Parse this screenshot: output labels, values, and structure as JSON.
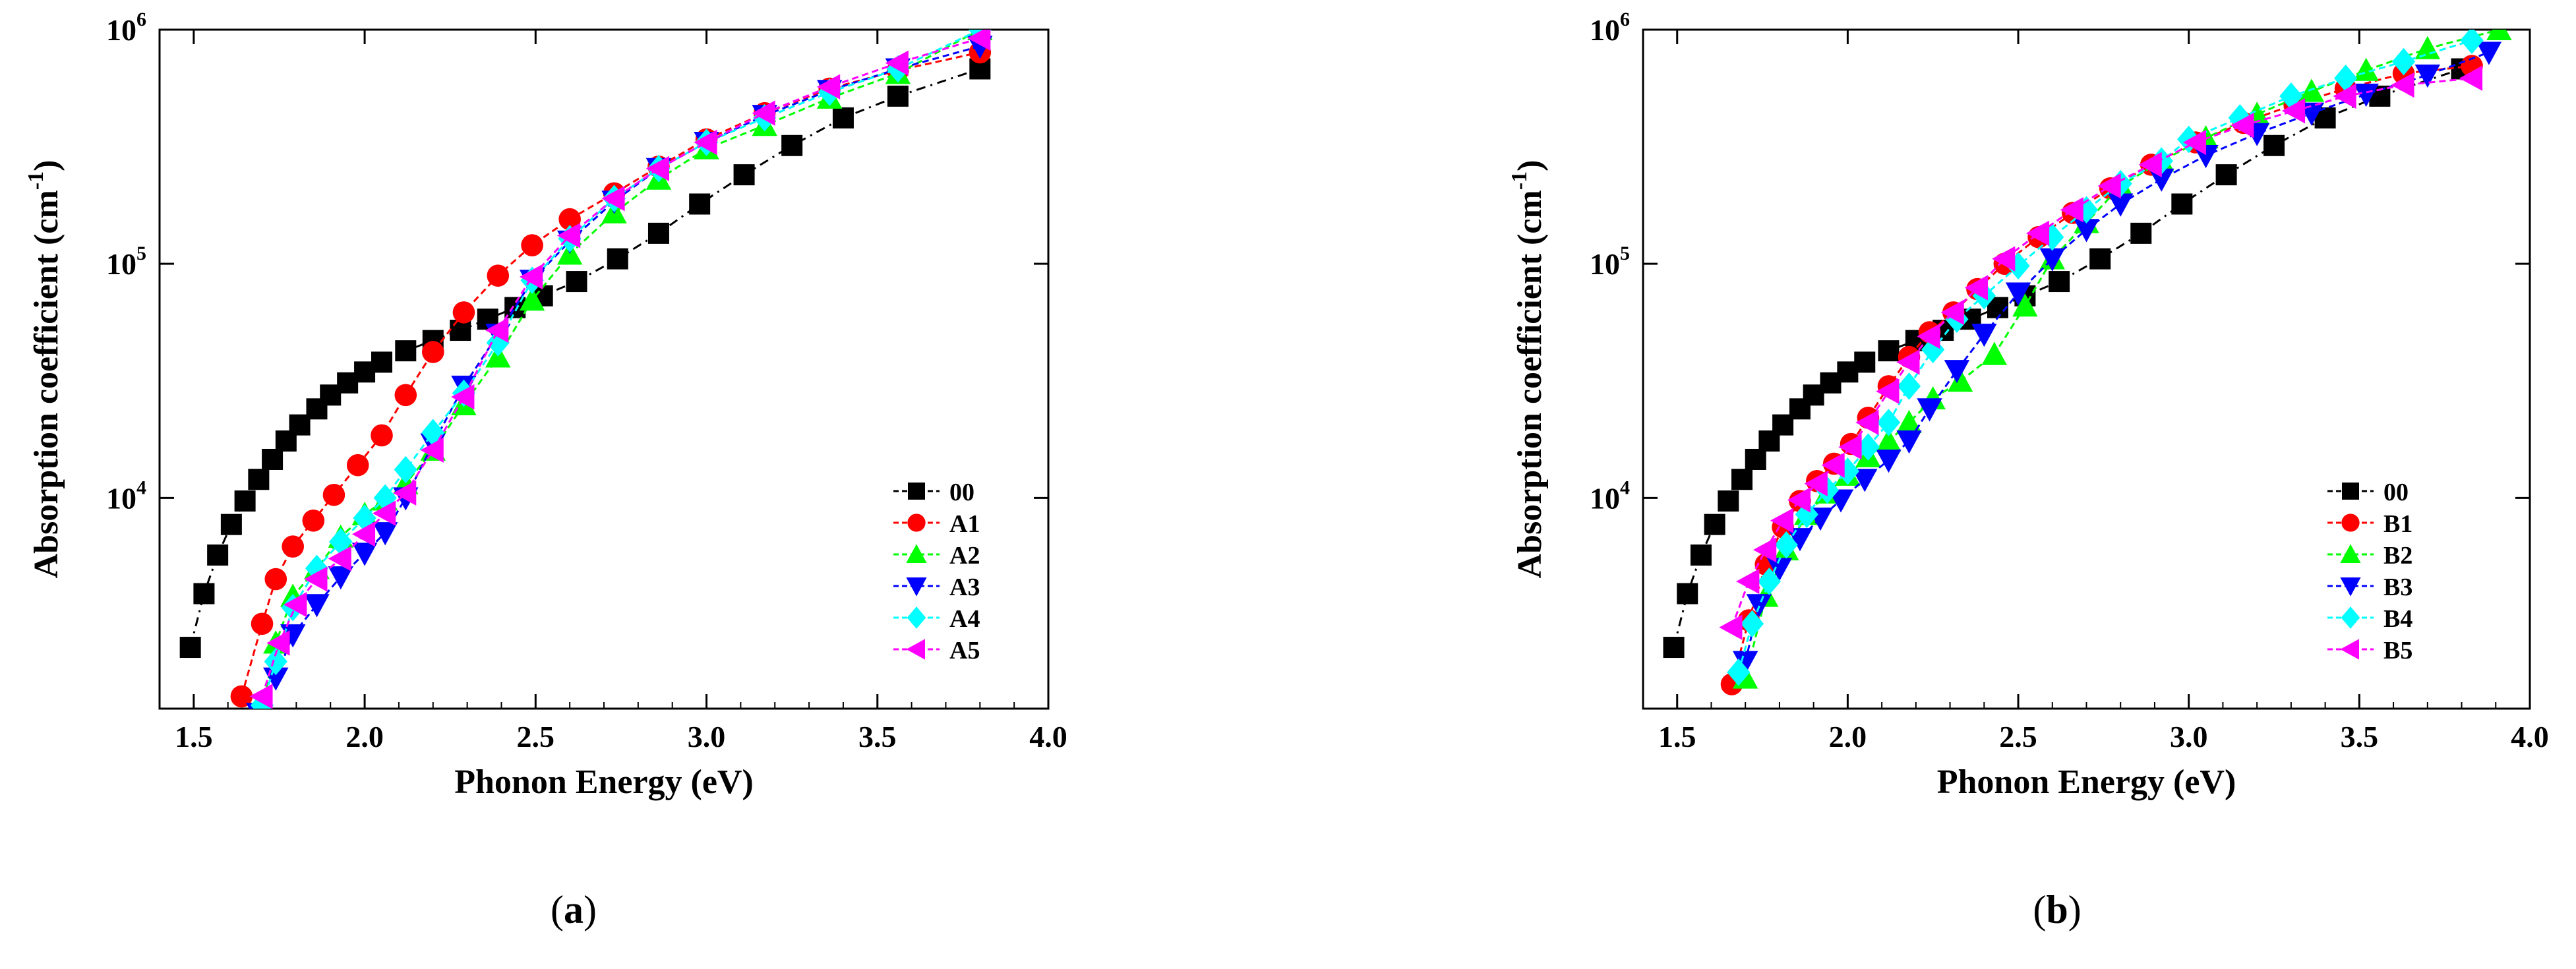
{
  "chart_data": [
    {
      "type": "scatter",
      "panel_label": "(a)",
      "title": "",
      "xlabel": "Phonon Energy (eV)",
      "ylabel": "Absorption coefficient (cm-1)",
      "ylabel_parts": [
        "Absorption coefficient (cm",
        "-1",
        ")"
      ],
      "xlim": [
        1.4,
        4.0
      ],
      "ylim_log10": [
        3.1,
        6.0
      ],
      "x_ticks": [
        1.5,
        2.0,
        2.5,
        3.0,
        3.5,
        4.0
      ],
      "x_tick_labels": [
        "1.5",
        "2.0",
        "2.5",
        "3.0",
        "3.5",
        "4.0"
      ],
      "y_ticks_log10": [
        4,
        5,
        6
      ],
      "y_tick_labels": [
        [
          "10",
          "4"
        ],
        [
          "10",
          "5"
        ],
        [
          "10",
          "6"
        ]
      ],
      "legend_position": "bottom-right",
      "series": [
        {
          "name": "00",
          "color": "#000000",
          "marker": "square",
          "x": [
            1.49,
            1.53,
            1.57,
            1.61,
            1.65,
            1.69,
            1.73,
            1.77,
            1.81,
            1.86,
            1.9,
            1.95,
            2.0,
            2.05,
            2.12,
            2.2,
            2.28,
            2.36,
            2.44,
            2.52,
            2.62,
            2.74,
            2.86,
            2.98,
            3.11,
            3.25,
            3.4,
            3.56,
            3.8
          ],
          "y": [
            2300,
            3900,
            5700,
            7700,
            9700,
            12000,
            14600,
            17500,
            20500,
            24000,
            27500,
            31000,
            34500,
            38000,
            42500,
            47000,
            52000,
            58000,
            65000,
            73000,
            84000,
            105000,
            135000,
            180000,
            240000,
            320000,
            420000,
            520000,
            680000
          ]
        },
        {
          "name": "A1",
          "color": "#ff0000",
          "marker": "circle",
          "x": [
            1.64,
            1.7,
            1.74,
            1.79,
            1.85,
            1.91,
            1.98,
            2.05,
            2.12,
            2.2,
            2.29,
            2.39,
            2.49,
            2.6,
            2.73,
            2.86,
            3.0,
            3.17,
            3.36,
            3.56,
            3.8
          ],
          "y": [
            1420,
            2900,
            4500,
            6200,
            8000,
            10300,
            13800,
            18500,
            27500,
            42000,
            62000,
            89000,
            120000,
            155000,
            200000,
            260000,
            340000,
            440000,
            560000,
            670000,
            800000
          ]
        },
        {
          "name": "A2",
          "color": "#00ff00",
          "marker": "triangle-up",
          "x": [
            1.7,
            1.74,
            1.79,
            1.86,
            1.93,
            2.0,
            2.06,
            2.12,
            2.2,
            2.29,
            2.39,
            2.49,
            2.6,
            2.73,
            2.86,
            3.0,
            3.17,
            3.36,
            3.56,
            3.8
          ],
          "y": [
            1250,
            2400,
            3800,
            5000,
            6800,
            8500,
            9800,
            11500,
            16000,
            25000,
            40000,
            70000,
            110000,
            165000,
            230000,
            310000,
            390000,
            510000,
            650000,
            1000000
          ]
        },
        {
          "name": "A3",
          "color": "#0000ff",
          "marker": "triangle-down",
          "x": [
            1.69,
            1.74,
            1.79,
            1.86,
            1.93,
            2.0,
            2.06,
            2.12,
            2.2,
            2.29,
            2.39,
            2.49,
            2.6,
            2.73,
            2.86,
            3.0,
            3.17,
            3.36,
            3.56,
            3.8
          ],
          "y": [
            1200,
            1700,
            2600,
            3500,
            4600,
            5800,
            7100,
            10000,
            17000,
            30000,
            50000,
            85000,
            125000,
            185000,
            255000,
            330000,
            430000,
            550000,
            680000,
            850000
          ]
        },
        {
          "name": "A4",
          "color": "#00ffff",
          "marker": "diamond",
          "x": [
            1.7,
            1.74,
            1.79,
            1.86,
            1.93,
            2.0,
            2.06,
            2.12,
            2.2,
            2.29,
            2.39,
            2.49,
            2.6,
            2.73,
            2.86,
            3.0,
            3.17,
            3.36,
            3.56,
            3.8
          ],
          "y": [
            1300,
            2000,
            3400,
            5000,
            6500,
            8200,
            10000,
            13200,
            19000,
            28000,
            46000,
            85000,
            128000,
            190000,
            255000,
            330000,
            420000,
            540000,
            680000,
            1000000
          ]
        },
        {
          "name": "A5",
          "color": "#ff00ff",
          "marker": "triangle-left",
          "x": [
            1.7,
            1.75,
            1.8,
            1.86,
            1.93,
            2.0,
            2.06,
            2.12,
            2.2,
            2.29,
            2.39,
            2.49,
            2.6,
            2.73,
            2.86,
            3.0,
            3.17,
            3.36,
            3.56,
            3.8
          ],
          "y": [
            1420,
            2400,
            3500,
            4500,
            5500,
            7000,
            8600,
            10500,
            16000,
            27000,
            52000,
            88000,
            132000,
            190000,
            255000,
            330000,
            440000,
            570000,
            720000,
            920000
          ]
        }
      ]
    },
    {
      "type": "scatter",
      "panel_label": "(b)",
      "title": "",
      "xlabel": "Phonon Energy (eV)",
      "ylabel": "Absorption coefficient (cm-1)",
      "ylabel_parts": [
        "Absorption coefficient (cm",
        "-1",
        ")"
      ],
      "xlim": [
        1.4,
        4.0
      ],
      "ylim_log10": [
        3.1,
        6.0
      ],
      "x_ticks": [
        1.5,
        2.0,
        2.5,
        3.0,
        3.5,
        4.0
      ],
      "x_tick_labels": [
        "1.5",
        "2.0",
        "2.5",
        "3.0",
        "3.5",
        "4.0"
      ],
      "y_ticks_log10": [
        4,
        5,
        6
      ],
      "y_tick_labels": [
        [
          "10",
          "4"
        ],
        [
          "10",
          "5"
        ],
        [
          "10",
          "6"
        ]
      ],
      "legend_position": "bottom-right",
      "series": [
        {
          "name": "00",
          "color": "#000000",
          "marker": "square",
          "x": [
            1.49,
            1.53,
            1.57,
            1.61,
            1.65,
            1.69,
            1.73,
            1.77,
            1.81,
            1.86,
            1.9,
            1.95,
            2.0,
            2.05,
            2.12,
            2.2,
            2.28,
            2.36,
            2.44,
            2.52,
            2.62,
            2.74,
            2.86,
            2.98,
            3.11,
            3.25,
            3.4,
            3.56,
            3.8
          ],
          "y": [
            2300,
            3900,
            5700,
            7700,
            9700,
            12000,
            14600,
            17500,
            20500,
            24000,
            27500,
            31000,
            34500,
            38000,
            42500,
            47000,
            52000,
            58000,
            65000,
            73000,
            84000,
            105000,
            135000,
            180000,
            240000,
            320000,
            420000,
            520000,
            680000
          ]
        },
        {
          "name": "B1",
          "color": "#ff0000",
          "marker": "circle",
          "x": [
            1.66,
            1.71,
            1.76,
            1.81,
            1.86,
            1.91,
            1.96,
            2.01,
            2.06,
            2.12,
            2.18,
            2.24,
            2.31,
            2.38,
            2.46,
            2.56,
            2.66,
            2.77,
            2.89,
            3.02,
            3.16,
            3.31,
            3.46,
            3.63,
            3.83
          ],
          "y": [
            1600,
            3000,
            5200,
            7500,
            9700,
            11800,
            14000,
            17000,
            22000,
            30000,
            40000,
            51000,
            62000,
            78000,
            100000,
            130000,
            165000,
            210000,
            265000,
            330000,
            400000,
            480000,
            560000,
            650000,
            700000
          ]
        },
        {
          "name": "B2",
          "color": "#00ff00",
          "marker": "triangle-up",
          "x": [
            1.7,
            1.76,
            1.82,
            1.88,
            1.94,
            2.0,
            2.06,
            2.12,
            2.18,
            2.25,
            2.33,
            2.43,
            2.52,
            2.6,
            2.7,
            2.8,
            2.92,
            3.05,
            3.2,
            3.36,
            3.52,
            3.7,
            3.91
          ],
          "y": [
            1700,
            3800,
            6000,
            8500,
            10500,
            12500,
            15000,
            17500,
            21000,
            26500,
            31500,
            41000,
            66000,
            105000,
            150000,
            215000,
            275000,
            345000,
            435000,
            545000,
            670000,
            830000,
            1000000
          ]
        },
        {
          "name": "B3",
          "color": "#0000ff",
          "marker": "triangle-down",
          "x": [
            1.7,
            1.74,
            1.8,
            1.86,
            1.92,
            1.98,
            2.05,
            2.12,
            2.18,
            2.24,
            2.32,
            2.4,
            2.5,
            2.6,
            2.7,
            2.8,
            2.92,
            3.05,
            3.2,
            3.36,
            3.52,
            3.7,
            3.88
          ],
          "y": [
            2000,
            3500,
            5000,
            6700,
            8200,
            9800,
            12000,
            14500,
            17500,
            24000,
            35000,
            50000,
            75000,
            105000,
            140000,
            180000,
            230000,
            290000,
            360000,
            440000,
            530000,
            640000,
            800000
          ]
        },
        {
          "name": "B4",
          "color": "#00ffff",
          "marker": "diamond",
          "x": [
            1.68,
            1.72,
            1.77,
            1.82,
            1.88,
            1.94,
            2.0,
            2.06,
            2.12,
            2.18,
            2.25,
            2.32,
            2.4,
            2.5,
            2.6,
            2.7,
            2.8,
            2.92,
            3.0,
            3.15,
            3.3,
            3.46,
            3.63,
            3.83
          ],
          "y": [
            1800,
            2900,
            4400,
            6300,
            8500,
            10800,
            13000,
            16500,
            21000,
            30000,
            43000,
            58000,
            73000,
            98000,
            130000,
            170000,
            220000,
            275000,
            340000,
            420000,
            520000,
            620000,
            730000,
            900000
          ]
        },
        {
          "name": "B5",
          "color": "#ff00ff",
          "marker": "triangle-left",
          "x": [
            1.66,
            1.71,
            1.76,
            1.81,
            1.86,
            1.91,
            1.96,
            2.01,
            2.06,
            2.12,
            2.18,
            2.24,
            2.31,
            2.38,
            2.46,
            2.56,
            2.66,
            2.77,
            2.89,
            3.02,
            3.16,
            3.31,
            3.46,
            3.63,
            3.83
          ],
          "y": [
            2800,
            4400,
            6000,
            8000,
            9800,
            11500,
            13800,
            16500,
            21000,
            28500,
            38000,
            49000,
            62000,
            79000,
            105000,
            135000,
            170000,
            215000,
            265000,
            330000,
            390000,
            450000,
            520000,
            580000,
            620000
          ]
        }
      ]
    }
  ]
}
